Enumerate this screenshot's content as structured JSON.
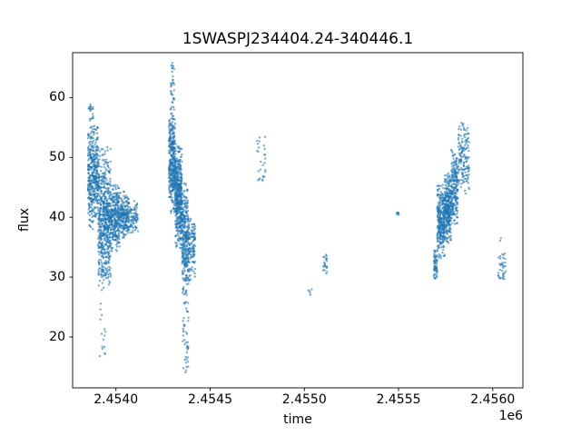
{
  "chart_data": {
    "type": "scatter",
    "title": "1SWASPJ234404.24-340446.1",
    "xlabel": "time",
    "ylabel": "flux",
    "x_offset_label": "1e6",
    "xlim": [
      2453770,
      2456160
    ],
    "ylim": [
      11.5,
      67.5
    ],
    "xticks": [
      {
        "value": 2454000,
        "label": "2.4540"
      },
      {
        "value": 2454500,
        "label": "2.4545"
      },
      {
        "value": 2455000,
        "label": "2.4550"
      },
      {
        "value": 2455500,
        "label": "2.4555"
      },
      {
        "value": 2456000,
        "label": "2.4560"
      }
    ],
    "yticks": [
      {
        "value": 20,
        "label": "20"
      },
      {
        "value": 30,
        "label": "30"
      },
      {
        "value": 40,
        "label": "40"
      },
      {
        "value": 50,
        "label": "50"
      },
      {
        "value": 60,
        "label": "60"
      }
    ],
    "marker_color": "#1f77b4",
    "marker_alpha": 0.6,
    "clusters": [
      {
        "name": "night-group-1",
        "segments": [
          {
            "t0": 2453852,
            "t1": 2453905,
            "f0": 37,
            "f1": 56,
            "n": 400
          },
          {
            "t0": 2453855,
            "t1": 2453880,
            "f0": 56,
            "f1": 59,
            "n": 20
          },
          {
            "t0": 2453905,
            "t1": 2453972,
            "f0": 26.5,
            "f1": 53,
            "n": 600
          },
          {
            "t0": 2453910,
            "t1": 2453945,
            "f0": 16,
            "f1": 26,
            "n": 15
          },
          {
            "t0": 2453972,
            "t1": 2454021,
            "f0": 33.5,
            "f1": 46,
            "n": 280
          },
          {
            "t0": 2454021,
            "t1": 2454069,
            "f0": 36,
            "f1": 44.5,
            "n": 200
          },
          {
            "t0": 2454069,
            "t1": 2454117,
            "f0": 37,
            "f1": 43,
            "n": 80
          }
        ]
      },
      {
        "name": "night-group-2",
        "segments": [
          {
            "t0": 2454281,
            "t1": 2454315,
            "f0": 40,
            "f1": 58,
            "n": 350
          },
          {
            "t0": 2454290,
            "t1": 2454310,
            "f0": 58,
            "f1": 66,
            "n": 35
          },
          {
            "t0": 2454315,
            "t1": 2454350,
            "f0": 34,
            "f1": 53,
            "n": 450
          },
          {
            "t0": 2454350,
            "t1": 2454385,
            "f0": 26,
            "f1": 46,
            "n": 300
          },
          {
            "t0": 2454355,
            "t1": 2454385,
            "f0": 14,
            "f1": 26,
            "n": 45
          },
          {
            "t0": 2454385,
            "t1": 2454421,
            "f0": 29,
            "f1": 41,
            "n": 120
          }
        ]
      },
      {
        "name": "night-group-3",
        "segments": [
          {
            "t0": 2454748,
            "t1": 2454797,
            "f0": 46,
            "f1": 53.5,
            "n": 28
          }
        ]
      },
      {
        "name": "night-group-4",
        "segments": [
          {
            "t0": 2455020,
            "t1": 2455040,
            "f0": 26.8,
            "f1": 28.2,
            "n": 5
          },
          {
            "t0": 2455100,
            "t1": 2455120,
            "f0": 30.5,
            "f1": 34,
            "n": 22
          }
        ]
      },
      {
        "name": "night-group-5",
        "segments": [
          {
            "t0": 2455487,
            "t1": 2455502,
            "f0": 40.3,
            "f1": 41.6,
            "n": 7
          }
        ]
      },
      {
        "name": "night-group-6",
        "segments": [
          {
            "t0": 2455688,
            "t1": 2455705,
            "f0": 29,
            "f1": 35,
            "n": 60
          },
          {
            "t0": 2455705,
            "t1": 2455745,
            "f0": 33,
            "f1": 46,
            "n": 300
          },
          {
            "t0": 2455745,
            "t1": 2455780,
            "f0": 35,
            "f1": 48,
            "n": 280
          },
          {
            "t0": 2455780,
            "t1": 2455815,
            "f0": 38,
            "f1": 52,
            "n": 200
          },
          {
            "t0": 2455815,
            "t1": 2455876,
            "f0": 43,
            "f1": 56,
            "n": 150
          }
        ]
      },
      {
        "name": "night-group-7",
        "segments": [
          {
            "t0": 2456025,
            "t1": 2456070,
            "f0": 29.5,
            "f1": 34,
            "n": 36
          },
          {
            "t0": 2456030,
            "t1": 2456045,
            "f0": 35.5,
            "f1": 36.5,
            "n": 2
          }
        ]
      }
    ]
  }
}
